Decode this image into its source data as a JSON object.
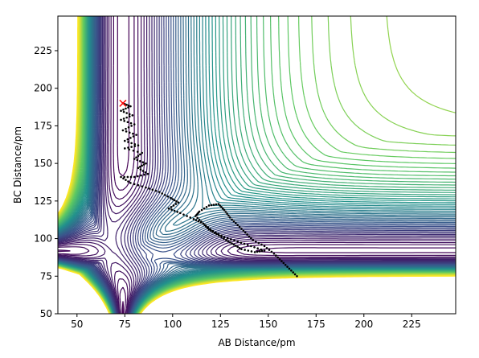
{
  "chart_data": {
    "type": "contour",
    "title": "",
    "xlabel": "AB Distance/pm",
    "ylabel": "BC Distance/pm",
    "xlim": [
      40,
      248
    ],
    "ylim": [
      50,
      248
    ],
    "xticks": [
      50,
      75,
      100,
      125,
      150,
      175,
      200,
      225
    ],
    "yticks": [
      50,
      75,
      100,
      125,
      150,
      175,
      200,
      225
    ],
    "x_tick_labels": [
      "50",
      "75",
      "100",
      "125",
      "150",
      "175",
      "200",
      "225"
    ],
    "y_tick_labels": [
      "50",
      "75",
      "100",
      "125",
      "150",
      "175",
      "200",
      "225"
    ],
    "colormap": "viridis",
    "colormap_stops": [
      "#440154",
      "#3b528b",
      "#21918c",
      "#5ec962",
      "#fde725"
    ],
    "grid": false,
    "legend": "none",
    "contour_levels": 60,
    "start_marker": {
      "symbol": "x",
      "color": "#ff0000",
      "x": 74,
      "y": 190
    },
    "trajectory_color": "#000000",
    "trajectory": [
      [
        74,
        190
      ],
      [
        78,
        188
      ],
      [
        73,
        185
      ],
      [
        79,
        182
      ],
      [
        73,
        179
      ],
      [
        80,
        176
      ],
      [
        74,
        172
      ],
      [
        81,
        169
      ],
      [
        75,
        165
      ],
      [
        82,
        162
      ],
      [
        75,
        160
      ],
      [
        84,
        157
      ],
      [
        80,
        153
      ],
      [
        86,
        150
      ],
      [
        82,
        147
      ],
      [
        87,
        143
      ],
      [
        80,
        141
      ],
      [
        73,
        141
      ],
      [
        78,
        137
      ],
      [
        86,
        134
      ],
      [
        93,
        131
      ],
      [
        99,
        127
      ],
      [
        103,
        124
      ],
      [
        98,
        120
      ],
      [
        104,
        117
      ],
      [
        111,
        113
      ],
      [
        116,
        110
      ],
      [
        119,
        106
      ],
      [
        123,
        103
      ],
      [
        128,
        99
      ],
      [
        132,
        96
      ],
      [
        136,
        93
      ],
      [
        143,
        91
      ],
      [
        148,
        92
      ],
      [
        141,
        95
      ],
      [
        134,
        98
      ],
      [
        127,
        101
      ],
      [
        121,
        105
      ],
      [
        116,
        110
      ],
      [
        112,
        115
      ],
      [
        114,
        118
      ],
      [
        119,
        122
      ],
      [
        124,
        123
      ],
      [
        127,
        119
      ],
      [
        130,
        114
      ],
      [
        134,
        109
      ],
      [
        138,
        104
      ],
      [
        142,
        99
      ],
      [
        148,
        95
      ],
      [
        153,
        90
      ],
      [
        157,
        85
      ],
      [
        161,
        80
      ],
      [
        165,
        75
      ]
    ]
  }
}
